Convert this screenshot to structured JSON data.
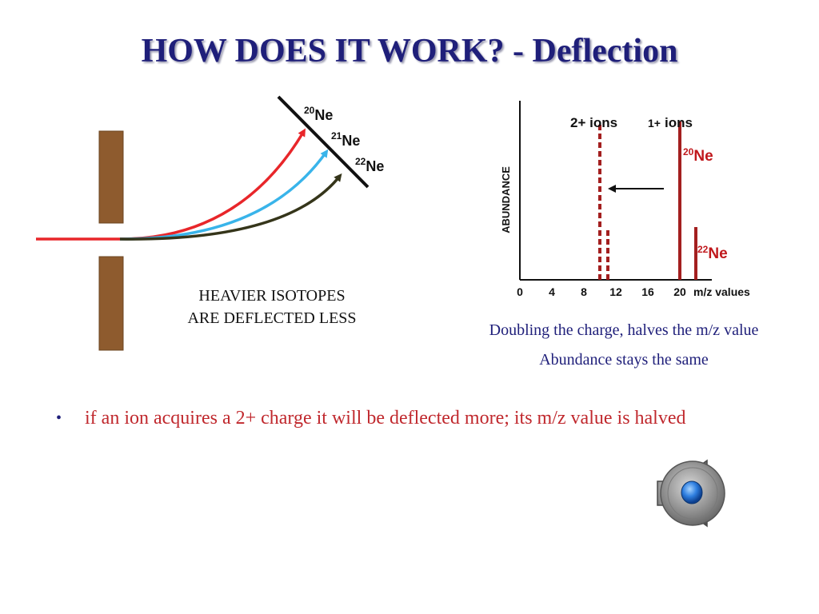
{
  "slide": {
    "title": "HOW DOES IT WORK? - Deflection"
  },
  "deflection_diagram": {
    "isotope_labels": [
      {
        "mass": "20",
        "symbol": "Ne"
      },
      {
        "mass": "21",
        "symbol": "Ne"
      },
      {
        "mass": "22",
        "symbol": "Ne"
      }
    ],
    "caption_line1": "HEAVIER ISOTOPES",
    "caption_line2": "ARE DEFLECTED LESS",
    "colors": {
      "isotope20": "#e8262a",
      "isotope21": "#39b4ea",
      "isotope22": "#35351a",
      "plate": "#8e5b2e"
    }
  },
  "chart_data": {
    "type": "bar",
    "ylabel": "ABUNDANCE",
    "xlabel": "m/z values",
    "x_ticks": [
      "0",
      "4",
      "8",
      "12",
      "16",
      "20"
    ],
    "xlim": [
      0,
      24
    ],
    "annotations": {
      "label_2plus": "2+ ions",
      "label_1plus_charge": "1+",
      "label_1plus_word": "ions",
      "peak20_mass": "20",
      "peak20_symbol": "Ne",
      "peak22_mass": "22",
      "peak22_symbol": "Ne"
    },
    "series": [
      {
        "name": "1+ ions",
        "style": "solid",
        "color": "#a31f1f",
        "points": [
          {
            "x": 20,
            "y": 0.9
          },
          {
            "x": 22,
            "y": 0.3
          }
        ]
      },
      {
        "name": "2+ ions",
        "style": "dashed",
        "color": "#a31f1f",
        "points": [
          {
            "x": 10,
            "y": 0.9
          },
          {
            "x": 11,
            "y": 0.3
          }
        ]
      }
    ]
  },
  "chart_captions": {
    "line1": "Doubling the charge, halves the m/z value",
    "line2": "Abundance stays the same"
  },
  "bullets": [
    {
      "marker": "•",
      "text": "if an ion acquires a 2+ charge it will be deflected more; its m/z value is halved"
    }
  ],
  "icons": {
    "audio": "speaker-icon"
  }
}
